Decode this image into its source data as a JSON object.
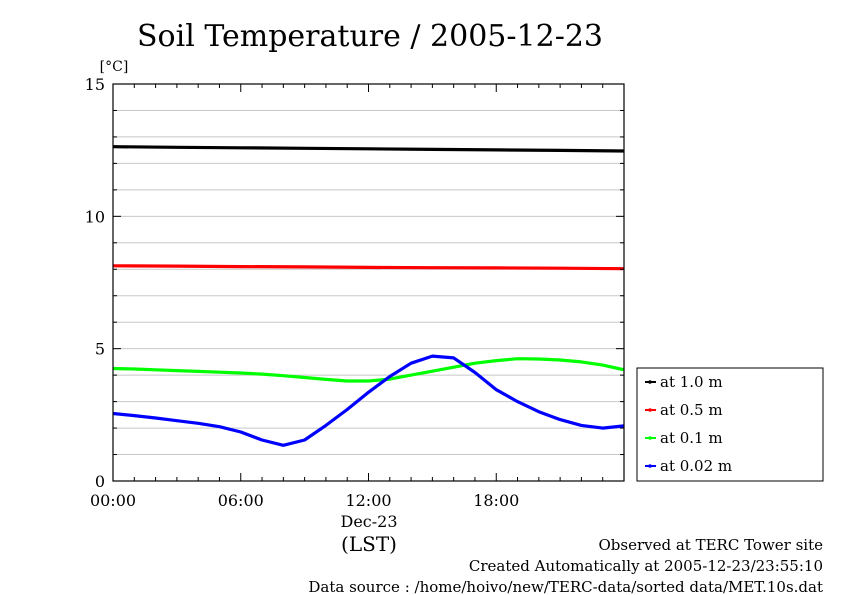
{
  "chart_data": {
    "type": "line",
    "title": "Soil Temperature / 2005-12-23",
    "ylabel": "[°C]",
    "xlabel": "(LST)",
    "date_label": "Dec-23",
    "ylim": [
      0,
      15
    ],
    "xlim": [
      0,
      24
    ],
    "y_ticks": [
      {
        "value": 0,
        "label": "0"
      },
      {
        "value": 5,
        "label": "5"
      },
      {
        "value": 10,
        "label": "10"
      },
      {
        "value": 15,
        "label": "15"
      }
    ],
    "x_ticks": [
      {
        "value": 0,
        "label": "00:00"
      },
      {
        "value": 6,
        "label": "06:00"
      },
      {
        "value": 12,
        "label": "12:00"
      },
      {
        "value": 18,
        "label": "18:00"
      }
    ],
    "grid": true,
    "legend_position": "right",
    "series": [
      {
        "name": "at 1.0 m",
        "color": "#000000",
        "x": [
          0,
          3,
          6,
          9,
          12,
          15,
          18,
          21,
          24
        ],
        "y": [
          12.63,
          12.61,
          12.59,
          12.57,
          12.55,
          12.53,
          12.51,
          12.49,
          12.47
        ]
      },
      {
        "name": "at 0.5 m",
        "color": "#ff0000",
        "x": [
          0,
          3,
          6,
          9,
          12,
          15,
          18,
          21,
          24
        ],
        "y": [
          8.13,
          8.12,
          8.1,
          8.09,
          8.07,
          8.06,
          8.05,
          8.04,
          8.02
        ]
      },
      {
        "name": "at 0.1 m",
        "color": "#00ff00",
        "x": [
          0,
          1,
          2,
          3,
          4,
          5,
          6,
          7,
          8,
          9,
          10,
          11,
          12,
          13,
          14,
          15,
          16,
          17,
          18,
          19,
          20,
          21,
          22,
          23,
          24
        ],
        "y": [
          4.25,
          4.23,
          4.2,
          4.17,
          4.14,
          4.11,
          4.08,
          4.04,
          3.98,
          3.91,
          3.84,
          3.78,
          3.78,
          3.85,
          4.0,
          4.15,
          4.3,
          4.45,
          4.55,
          4.62,
          4.61,
          4.57,
          4.5,
          4.38,
          4.2
        ]
      },
      {
        "name": "at 0.02 m",
        "color": "#0000ff",
        "x": [
          0,
          1,
          2,
          3,
          4,
          5,
          6,
          7,
          8,
          9,
          10,
          11,
          12,
          13,
          14,
          15,
          16,
          17,
          18,
          19,
          20,
          21,
          22,
          23,
          24
        ],
        "y": [
          2.55,
          2.47,
          2.38,
          2.28,
          2.18,
          2.05,
          1.85,
          1.55,
          1.35,
          1.55,
          2.1,
          2.7,
          3.35,
          3.95,
          4.45,
          4.72,
          4.65,
          4.1,
          3.45,
          3.0,
          2.62,
          2.32,
          2.1,
          2.0,
          2.08
        ]
      }
    ]
  },
  "footer": {
    "line1": "Observed at TERC Tower site",
    "line2": "Created Automatically at 2005-12-23/23:55:10",
    "line3": "Data source : /home/hoivo/new/TERC-data/sorted  data/MET.10s.dat"
  }
}
